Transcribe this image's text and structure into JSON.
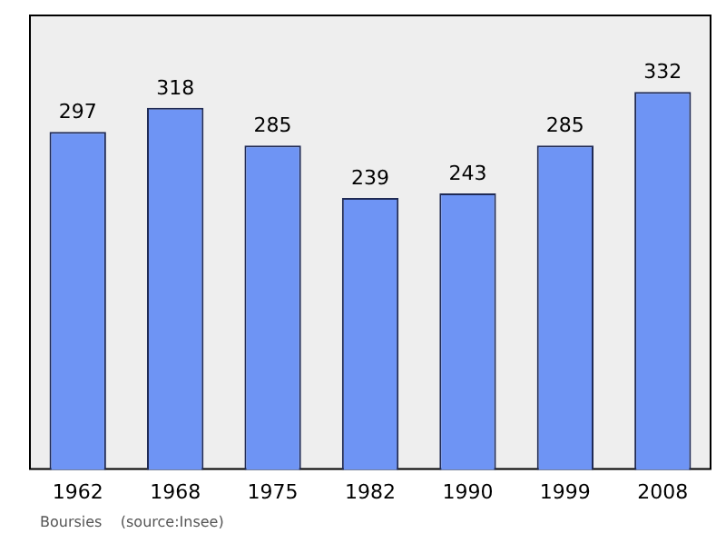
{
  "chart_data": {
    "type": "bar",
    "categories": [
      "1962",
      "1968",
      "1975",
      "1982",
      "1990",
      "1999",
      "2008"
    ],
    "values": [
      297,
      318,
      285,
      239,
      243,
      285,
      332
    ],
    "color": "#6e94f4",
    "data_labels": true,
    "grid": false,
    "legend": false,
    "tick_labels": "x",
    "annotations": [
      "Boursies    (source:Insee)"
    ]
  }
}
